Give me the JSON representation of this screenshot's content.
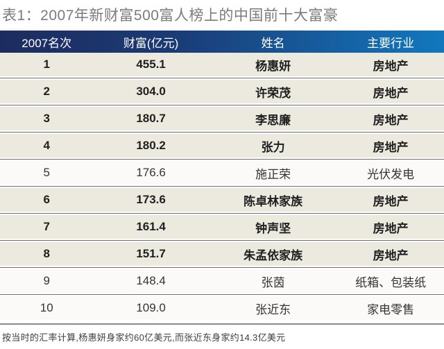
{
  "chart_data": {
    "type": "table",
    "title": "表1：2007年新财富500富人榜上的中国前十大富豪",
    "columns": [
      "2007名次",
      "财富(亿元)",
      "姓名",
      "主要行业"
    ],
    "rows": [
      {
        "rank": "1",
        "wealth": "455.1",
        "name": "杨惠妍",
        "industry": "房地产",
        "emphasis": true
      },
      {
        "rank": "2",
        "wealth": "304.0",
        "name": "许荣茂",
        "industry": "房地产",
        "emphasis": true
      },
      {
        "rank": "3",
        "wealth": "180.7",
        "name": "李思廉",
        "industry": "房地产",
        "emphasis": true
      },
      {
        "rank": "4",
        "wealth": "180.2",
        "name": "张力",
        "industry": "房地产",
        "emphasis": true
      },
      {
        "rank": "5",
        "wealth": "176.6",
        "name": "施正荣",
        "industry": "光伏发电",
        "emphasis": false
      },
      {
        "rank": "6",
        "wealth": "173.6",
        "name": "陈卓林家族",
        "industry": "房地产",
        "emphasis": true
      },
      {
        "rank": "7",
        "wealth": "161.4",
        "name": "钟声坚",
        "industry": "房地产",
        "emphasis": true
      },
      {
        "rank": "8",
        "wealth": "151.7",
        "name": "朱孟依家族",
        "industry": "房地产",
        "emphasis": true
      },
      {
        "rank": "9",
        "wealth": "148.4",
        "name": "张茵",
        "industry": "纸箱、包装纸",
        "emphasis": false
      },
      {
        "rank": "10",
        "wealth": "109.0",
        "name": "张近东",
        "industry": "家电零售",
        "emphasis": false
      }
    ],
    "footnote": "按当时的汇率计算,杨惠妍身家约60亿美元,而张近东身家约14.3亿美元"
  },
  "colors": {
    "header_gradient_left": "#1d2c60",
    "header_gradient_right": "#1278be",
    "header_text": "#ffffff",
    "row_emphasis_bg": "#ece9df",
    "row_plain_bg": "#fbfaf8",
    "separator_line": "#6f6d69",
    "title_text": "#7b7b7b",
    "footnote_text": "#3d3d3d"
  }
}
